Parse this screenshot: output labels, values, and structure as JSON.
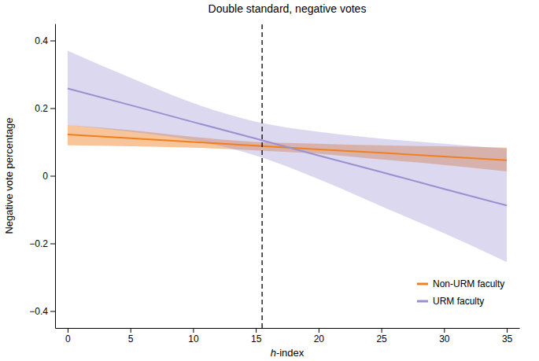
{
  "chart_data": {
    "type": "line",
    "title": "Double standard, negative votes",
    "x_label": "h-index",
    "y_label": "Negative vote percentage",
    "x": [
      0,
      5,
      10,
      15,
      20,
      25,
      30,
      35
    ],
    "xlim": [
      -1,
      36
    ],
    "xticks": [
      0,
      5,
      10,
      15,
      20,
      25,
      30,
      35
    ],
    "ylim": [
      -0.45,
      0.45
    ],
    "yticks": [
      {
        "value": -0.4,
        "label": "−0.4"
      },
      {
        "value": -0.2,
        "label": "−0.2"
      },
      0,
      0.2,
      0.4
    ],
    "legend": "bottom-right",
    "grid": false,
    "reference_line": {
      "x": 15.5,
      "line_style": "dashed"
    },
    "series": [
      {
        "name": "Non-URM faculty",
        "color": "#f07f1e",
        "values": [
          0.122,
          0.111,
          0.1,
          0.089,
          0.078,
          0.068,
          0.057,
          0.046
        ],
        "lower": [
          0.09,
          0.087,
          0.083,
          0.075,
          0.065,
          0.048,
          0.032,
          0.013
        ],
        "upper": [
          0.15,
          0.135,
          0.115,
          0.1,
          0.095,
          0.09,
          0.087,
          0.083
        ]
      },
      {
        "name": "URM faculty",
        "color": "#9b8fd0",
        "values": [
          0.258,
          0.209,
          0.159,
          0.11,
          0.06,
          0.011,
          -0.039,
          -0.088
        ],
        "lower": [
          0.15,
          0.13,
          0.105,
          0.06,
          -0.01,
          -0.09,
          -0.17,
          -0.255
        ],
        "upper": [
          0.37,
          0.29,
          0.215,
          0.16,
          0.13,
          0.11,
          0.095,
          0.08
        ]
      }
    ]
  }
}
